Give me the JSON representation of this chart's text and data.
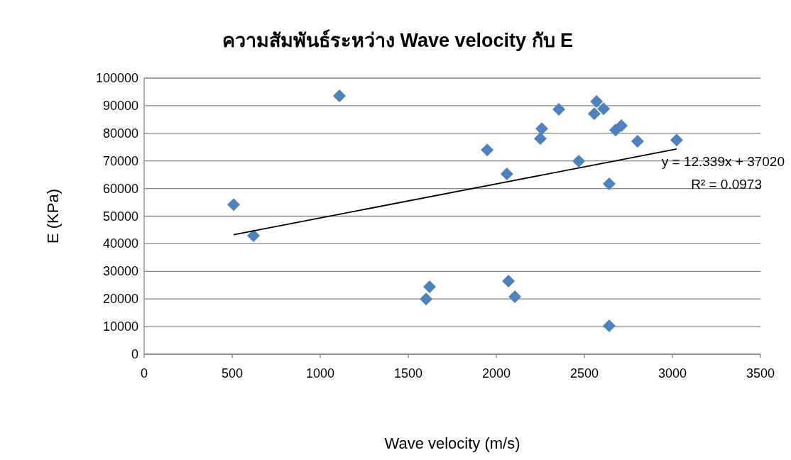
{
  "chart_data": {
    "type": "scatter",
    "title": "ความสัมพันธ์ระหว่าง Wave velocity กับ E",
    "xlabel": "Wave velocity (m/s)",
    "ylabel": "E (KPa)",
    "xlim": [
      0,
      3500
    ],
    "xticks": [
      0,
      500,
      1000,
      1500,
      2000,
      2500,
      3000,
      3500
    ],
    "ylim": [
      0,
      100000
    ],
    "yticks": [
      0,
      10000,
      20000,
      30000,
      40000,
      50000,
      60000,
      70000,
      80000,
      90000,
      100000
    ],
    "grid": "y",
    "marker": "diamond",
    "annotations": [
      "y = 12.339x + 37020",
      "R² = 0.0973"
    ],
    "series": [
      {
        "color": "#4f81bd",
        "x": [
          508,
          621,
          1109,
          1601,
          1621,
          1948,
          2060,
          2069,
          2105,
          2250,
          2258,
          2355,
          2468,
          2569,
          2609,
          2556,
          2641,
          2641,
          2677,
          2710,
          2802,
          3024
        ],
        "values": [
          54200,
          42900,
          93600,
          20000,
          24400,
          74000,
          65300,
          26500,
          20800,
          78100,
          81700,
          88700,
          69900,
          91500,
          88900,
          87100,
          61700,
          10300,
          81200,
          82800,
          77100,
          77600
        ]
      },
      {
        "type": "line",
        "color": "#000000",
        "line_style": "solid",
        "marker": "none",
        "x": [
          508,
          3024
        ],
        "values": [
          43300,
          74300
        ]
      }
    ]
  }
}
